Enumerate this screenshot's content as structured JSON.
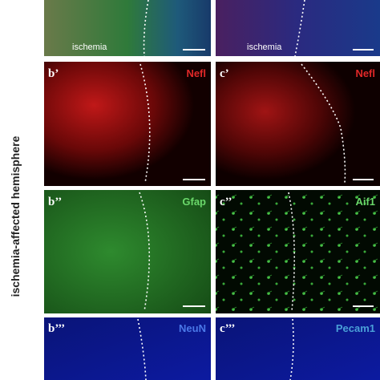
{
  "side_label": "ischemia-affected hemisphere",
  "top_panels": [
    {
      "label": "ischemia"
    },
    {
      "label": "ischemia"
    }
  ],
  "panels": [
    {
      "label": "b’",
      "stain": "Nefl"
    },
    {
      "label": "c’",
      "stain": "Nefl"
    },
    {
      "label": "b’’",
      "stain": "Gfap"
    },
    {
      "label": "c’’",
      "stain": "Aif1"
    },
    {
      "label": "b’’’",
      "stain": "NeuN"
    },
    {
      "label": "c’’’",
      "stain": "Pecam1"
    }
  ]
}
